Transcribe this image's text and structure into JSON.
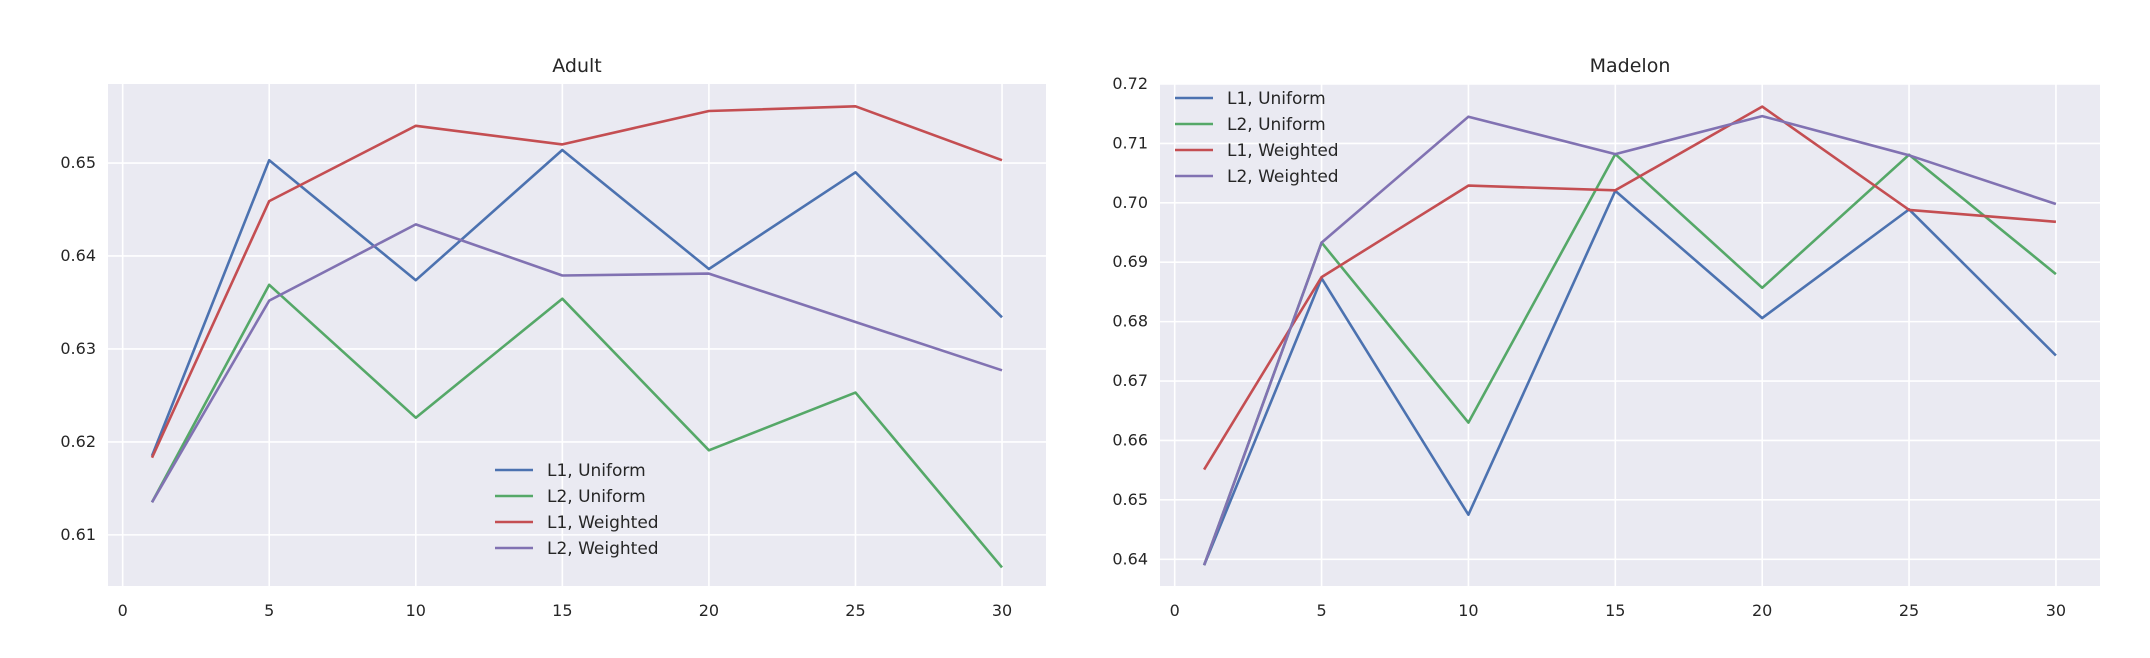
{
  "chart_data": [
    {
      "type": "line",
      "title": "Adult",
      "xlabel": "",
      "ylabel": "",
      "x": [
        1,
        5,
        10,
        15,
        20,
        25,
        30
      ],
      "xlim": [
        -0.5,
        31.5
      ],
      "ylim": [
        0.6045,
        0.6585
      ],
      "xticks": [
        0,
        5,
        10,
        15,
        20,
        25,
        30
      ],
      "yticks": [
        0.61,
        0.62,
        0.63,
        0.64,
        0.65
      ],
      "grid": true,
      "legend_position": "lower-center",
      "series": [
        {
          "name": "L1, Uniform",
          "color": "#4c72b0",
          "values": [
            0.6185,
            0.6503,
            0.6374,
            0.6514,
            0.6386,
            0.649,
            0.6334
          ]
        },
        {
          "name": "L2, Uniform",
          "color": "#55a868",
          "values": [
            0.6135,
            0.6369,
            0.6226,
            0.6354,
            0.6191,
            0.6253,
            0.6065
          ]
        },
        {
          "name": "L1, Weighted",
          "color": "#c44e52",
          "values": [
            0.6183,
            0.6459,
            0.654,
            0.652,
            0.6556,
            0.6561,
            0.6503
          ]
        },
        {
          "name": "L2, Weighted",
          "color": "#8172b2",
          "values": [
            0.6135,
            0.6352,
            0.6434,
            0.6379,
            0.6381,
            0.6329,
            0.6277
          ]
        }
      ]
    },
    {
      "type": "line",
      "title": "Madelon",
      "xlabel": "",
      "ylabel": "",
      "x": [
        1,
        5,
        10,
        15,
        20,
        25,
        30
      ],
      "xlim": [
        -0.5,
        31.5
      ],
      "ylim": [
        0.6355,
        0.72
      ],
      "xticks": [
        0,
        5,
        10,
        15,
        20,
        25,
        30
      ],
      "yticks": [
        0.64,
        0.65,
        0.66,
        0.67,
        0.68,
        0.69,
        0.7,
        0.71,
        0.72
      ],
      "ytick_labels": [
        "0.64",
        "0.65",
        "0.66",
        "0.67",
        "0.68",
        "0.69",
        "0.70",
        "0.71",
        "0.72"
      ],
      "grid": true,
      "legend_position": "upper-left",
      "series": [
        {
          "name": "L1, Uniform",
          "color": "#4c72b0",
          "values": [
            0.639,
            0.6873,
            0.6475,
            0.702,
            0.6806,
            0.6989,
            0.6743
          ]
        },
        {
          "name": "L2, Uniform",
          "color": "#55a868",
          "values": [
            0.639,
            0.6933,
            0.663,
            0.7082,
            0.6857,
            0.7081,
            0.688
          ]
        },
        {
          "name": "L1, Weighted",
          "color": "#c44e52",
          "values": [
            0.6551,
            0.6875,
            0.7029,
            0.7021,
            0.7162,
            0.6988,
            0.6968
          ]
        },
        {
          "name": "L2, Weighted",
          "color": "#8172b2",
          "values": [
            0.639,
            0.6933,
            0.7145,
            0.7082,
            0.7146,
            0.708,
            0.6998
          ]
        }
      ]
    }
  ]
}
